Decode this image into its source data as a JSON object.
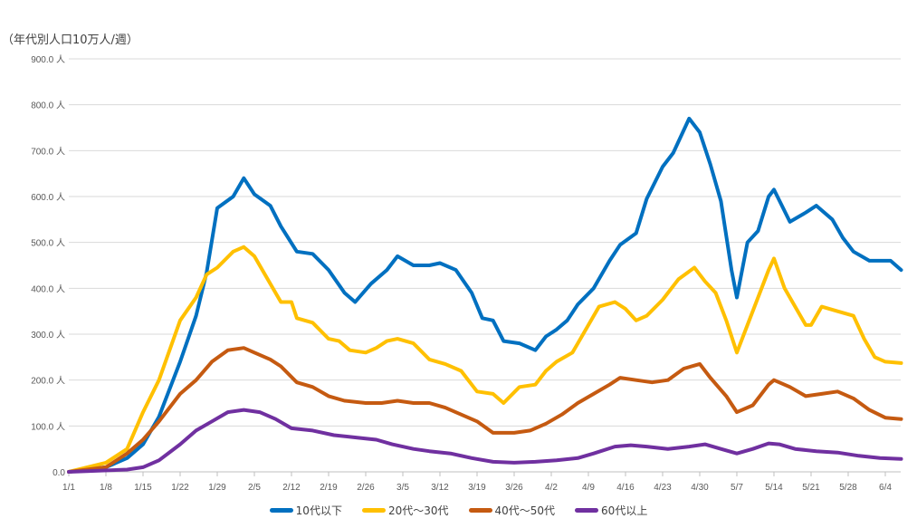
{
  "chart_data": {
    "type": "line",
    "unit_label": "（年代別人口10万人/週）",
    "y_ticks": [
      "0.0",
      "100.0 人",
      "200.0 人",
      "300.0 人",
      "400.0 人",
      "500.0 人",
      "600.0 人",
      "700.0 人",
      "800.0 人",
      "900.0 人"
    ],
    "ylim": [
      0,
      900
    ],
    "x_ticks": [
      "1/1",
      "1/8",
      "1/15",
      "1/22",
      "1/29",
      "2/5",
      "2/12",
      "2/19",
      "2/26",
      "3/5",
      "3/12",
      "3/19",
      "3/26",
      "4/2",
      "4/9",
      "4/16",
      "4/23",
      "4/30",
      "5/7",
      "5/14",
      "5/21",
      "5/28",
      "6/4"
    ],
    "grid": true,
    "legend_position": "bottom",
    "series": [
      {
        "name": "10代以下",
        "color": "#0070C0",
        "points": [
          [
            "1/1",
            0
          ],
          [
            "1/8",
            10
          ],
          [
            "1/12",
            30
          ],
          [
            "1/15",
            60
          ],
          [
            "1/18",
            120
          ],
          [
            "1/22",
            240
          ],
          [
            "1/25",
            340
          ],
          [
            "1/27",
            435
          ],
          [
            "1/29",
            575
          ],
          [
            "2/1",
            600
          ],
          [
            "2/3",
            640
          ],
          [
            "2/5",
            605
          ],
          [
            "2/8",
            580
          ],
          [
            "2/10",
            535
          ],
          [
            "2/13",
            480
          ],
          [
            "2/16",
            475
          ],
          [
            "2/19",
            440
          ],
          [
            "2/22",
            390
          ],
          [
            "2/24",
            370
          ],
          [
            "2/27",
            410
          ],
          [
            "3/2",
            440
          ],
          [
            "3/4",
            470
          ],
          [
            "3/7",
            450
          ],
          [
            "3/10",
            450
          ],
          [
            "3/12",
            455
          ],
          [
            "3/15",
            440
          ],
          [
            "3/18",
            390
          ],
          [
            "3/20",
            335
          ],
          [
            "3/22",
            330
          ],
          [
            "3/24",
            285
          ],
          [
            "3/27",
            280
          ],
          [
            "3/30",
            265
          ],
          [
            "4/1",
            295
          ],
          [
            "4/3",
            310
          ],
          [
            "4/5",
            330
          ],
          [
            "4/7",
            365
          ],
          [
            "4/10",
            400
          ],
          [
            "4/13",
            460
          ],
          [
            "4/15",
            495
          ],
          [
            "4/18",
            520
          ],
          [
            "4/20",
            595
          ],
          [
            "4/23",
            665
          ],
          [
            "4/25",
            695
          ],
          [
            "4/28",
            770
          ],
          [
            "4/30",
            740
          ],
          [
            "5/2",
            670
          ],
          [
            "5/4",
            590
          ],
          [
            "5/6",
            440
          ],
          [
            "5/7",
            380
          ],
          [
            "5/9",
            500
          ],
          [
            "5/11",
            525
          ],
          [
            "5/13",
            600
          ],
          [
            "5/14",
            615
          ],
          [
            "5/17",
            545
          ],
          [
            "5/20",
            565
          ],
          [
            "5/22",
            580
          ],
          [
            "5/25",
            550
          ],
          [
            "5/27",
            510
          ],
          [
            "5/29",
            480
          ],
          [
            "6/1",
            460
          ],
          [
            "6/3",
            460
          ],
          [
            "6/5",
            460
          ],
          [
            "6/7",
            440
          ]
        ]
      },
      {
        "name": "20代～30代",
        "color": "#FFC000",
        "points": [
          [
            "1/1",
            0
          ],
          [
            "1/8",
            20
          ],
          [
            "1/12",
            50
          ],
          [
            "1/15",
            130
          ],
          [
            "1/18",
            200
          ],
          [
            "1/22",
            330
          ],
          [
            "1/25",
            380
          ],
          [
            "1/27",
            430
          ],
          [
            "1/29",
            445
          ],
          [
            "2/1",
            480
          ],
          [
            "2/3",
            490
          ],
          [
            "2/5",
            470
          ],
          [
            "2/7",
            430
          ],
          [
            "2/10",
            370
          ],
          [
            "2/12",
            370
          ],
          [
            "2/13",
            335
          ],
          [
            "2/16",
            325
          ],
          [
            "2/19",
            290
          ],
          [
            "2/21",
            285
          ],
          [
            "2/23",
            265
          ],
          [
            "2/26",
            260
          ],
          [
            "2/28",
            270
          ],
          [
            "3/2",
            285
          ],
          [
            "3/4",
            290
          ],
          [
            "3/7",
            280
          ],
          [
            "3/10",
            245
          ],
          [
            "3/13",
            235
          ],
          [
            "3/16",
            220
          ],
          [
            "3/19",
            175
          ],
          [
            "3/22",
            170
          ],
          [
            "3/24",
            150
          ],
          [
            "3/27",
            185
          ],
          [
            "3/30",
            190
          ],
          [
            "4/1",
            220
          ],
          [
            "4/3",
            240
          ],
          [
            "4/6",
            260
          ],
          [
            "4/9",
            320
          ],
          [
            "4/11",
            360
          ],
          [
            "4/14",
            370
          ],
          [
            "4/16",
            355
          ],
          [
            "4/18",
            330
          ],
          [
            "4/20",
            340
          ],
          [
            "4/23",
            375
          ],
          [
            "4/26",
            420
          ],
          [
            "4/29",
            445
          ],
          [
            "5/1",
            415
          ],
          [
            "5/3",
            390
          ],
          [
            "5/5",
            330
          ],
          [
            "5/7",
            260
          ],
          [
            "5/9",
            320
          ],
          [
            "5/11",
            380
          ],
          [
            "5/13",
            440
          ],
          [
            "5/14",
            465
          ],
          [
            "5/16",
            400
          ],
          [
            "5/18",
            360
          ],
          [
            "5/20",
            320
          ],
          [
            "5/21",
            320
          ],
          [
            "5/23",
            360
          ],
          [
            "5/26",
            350
          ],
          [
            "5/29",
            340
          ],
          [
            "5/31",
            290
          ],
          [
            "6/2",
            250
          ],
          [
            "6/4",
            240
          ],
          [
            "6/7",
            237
          ]
        ]
      },
      {
        "name": "40代～50代",
        "color": "#C55A11",
        "points": [
          [
            "1/1",
            0
          ],
          [
            "1/8",
            10
          ],
          [
            "1/12",
            40
          ],
          [
            "1/15",
            70
          ],
          [
            "1/18",
            110
          ],
          [
            "1/22",
            170
          ],
          [
            "1/25",
            200
          ],
          [
            "1/28",
            240
          ],
          [
            "1/31",
            265
          ],
          [
            "2/3",
            270
          ],
          [
            "2/5",
            260
          ],
          [
            "2/8",
            245
          ],
          [
            "2/10",
            230
          ],
          [
            "2/13",
            195
          ],
          [
            "2/16",
            185
          ],
          [
            "2/19",
            165
          ],
          [
            "2/22",
            155
          ],
          [
            "2/26",
            150
          ],
          [
            "3/1",
            150
          ],
          [
            "3/4",
            155
          ],
          [
            "3/7",
            150
          ],
          [
            "3/10",
            150
          ],
          [
            "3/13",
            140
          ],
          [
            "3/16",
            125
          ],
          [
            "3/19",
            110
          ],
          [
            "3/22",
            85
          ],
          [
            "3/26",
            85
          ],
          [
            "3/29",
            90
          ],
          [
            "4/1",
            105
          ],
          [
            "4/4",
            125
          ],
          [
            "4/7",
            150
          ],
          [
            "4/10",
            170
          ],
          [
            "4/13",
            190
          ],
          [
            "4/15",
            205
          ],
          [
            "4/18",
            200
          ],
          [
            "4/21",
            195
          ],
          [
            "4/24",
            200
          ],
          [
            "4/27",
            225
          ],
          [
            "4/30",
            235
          ],
          [
            "5/2",
            205
          ],
          [
            "5/5",
            165
          ],
          [
            "5/7",
            130
          ],
          [
            "5/10",
            145
          ],
          [
            "5/13",
            190
          ],
          [
            "5/14",
            200
          ],
          [
            "5/17",
            185
          ],
          [
            "5/20",
            165
          ],
          [
            "5/23",
            170
          ],
          [
            "5/26",
            175
          ],
          [
            "5/29",
            160
          ],
          [
            "6/1",
            135
          ],
          [
            "6/4",
            118
          ],
          [
            "6/7",
            115
          ]
        ]
      },
      {
        "name": "60代以上",
        "color": "#7030A0",
        "points": [
          [
            "1/1",
            0
          ],
          [
            "1/12",
            5
          ],
          [
            "1/15",
            10
          ],
          [
            "1/18",
            25
          ],
          [
            "1/22",
            60
          ],
          [
            "1/25",
            90
          ],
          [
            "1/28",
            110
          ],
          [
            "1/31",
            130
          ],
          [
            "2/3",
            135
          ],
          [
            "2/6",
            130
          ],
          [
            "2/9",
            115
          ],
          [
            "2/12",
            95
          ],
          [
            "2/16",
            90
          ],
          [
            "2/20",
            80
          ],
          [
            "2/24",
            75
          ],
          [
            "2/28",
            70
          ],
          [
            "3/3",
            60
          ],
          [
            "3/7",
            50
          ],
          [
            "3/10",
            45
          ],
          [
            "3/14",
            40
          ],
          [
            "3/18",
            30
          ],
          [
            "3/22",
            22
          ],
          [
            "3/26",
            20
          ],
          [
            "3/30",
            22
          ],
          [
            "4/3",
            25
          ],
          [
            "4/7",
            30
          ],
          [
            "4/10",
            40
          ],
          [
            "4/14",
            55
          ],
          [
            "4/17",
            58
          ],
          [
            "4/20",
            55
          ],
          [
            "4/24",
            50
          ],
          [
            "4/28",
            55
          ],
          [
            "5/1",
            60
          ],
          [
            "5/4",
            50
          ],
          [
            "5/7",
            40
          ],
          [
            "5/10",
            50
          ],
          [
            "5/13",
            62
          ],
          [
            "5/15",
            60
          ],
          [
            "5/18",
            50
          ],
          [
            "5/22",
            45
          ],
          [
            "5/26",
            42
          ],
          [
            "5/30",
            35
          ],
          [
            "6/3",
            30
          ],
          [
            "6/7",
            28
          ]
        ]
      }
    ]
  }
}
